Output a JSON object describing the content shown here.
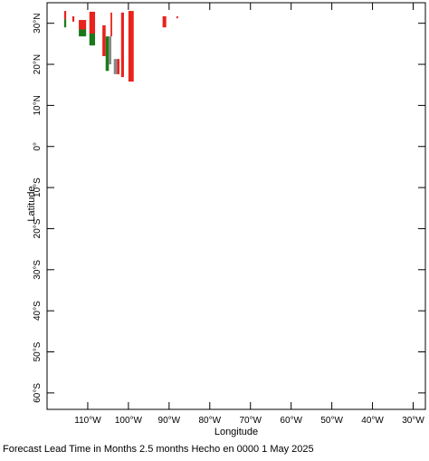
{
  "chart_data": {
    "type": "map",
    "xlabel": "Longitude",
    "ylabel": "Latitude",
    "footer": "Forecast Lead Time in Months 2.5 months Hecho en 0000 1 May 2025",
    "xlim": [
      -120,
      -27
    ],
    "ylim": [
      -64,
      35
    ],
    "xticks": [
      {
        "value": -110,
        "label": "110°W"
      },
      {
        "value": -100,
        "label": "100°W"
      },
      {
        "value": -90,
        "label": "90°W"
      },
      {
        "value": -80,
        "label": "80°W"
      },
      {
        "value": -70,
        "label": "70°W"
      },
      {
        "value": -60,
        "label": "60°W"
      },
      {
        "value": -50,
        "label": "50°W"
      },
      {
        "value": -40,
        "label": "40°W"
      },
      {
        "value": -30,
        "label": "30°W"
      }
    ],
    "yticks": [
      {
        "value": 30,
        "label": "30°N"
      },
      {
        "value": 20,
        "label": "20°N"
      },
      {
        "value": 10,
        "label": "10°N"
      },
      {
        "value": 0,
        "label": "0°"
      },
      {
        "value": -10,
        "label": "10°S"
      },
      {
        "value": -20,
        "label": "20°S"
      },
      {
        "value": -30,
        "label": "30°S"
      },
      {
        "value": -40,
        "label": "40°S"
      },
      {
        "value": -50,
        "label": "50°S"
      },
      {
        "value": -60,
        "label": "60°S"
      }
    ],
    "segments": [
      {
        "lon": [
          -115.8,
          -115.3
        ],
        "lat": [
          29,
          31
        ],
        "color": "#1a7a1a"
      },
      {
        "lon": [
          -115.8,
          -115.3
        ],
        "lat": [
          31,
          33
        ],
        "color": "#e8221c"
      },
      {
        "lon": [
          -113.8,
          -113.3
        ],
        "lat": [
          30.4,
          31.7
        ],
        "color": "#e8221c"
      },
      {
        "lon": [
          -112.2,
          -110.4
        ],
        "lat": [
          28.5,
          30.8
        ],
        "color": "#e8221c"
      },
      {
        "lon": [
          -112.2,
          -110.4
        ],
        "lat": [
          26.8,
          28.5
        ],
        "color": "#1a7a1a"
      },
      {
        "lon": [
          -109.6,
          -108.2
        ],
        "lat": [
          27.5,
          32.8
        ],
        "color": "#e8221c"
      },
      {
        "lon": [
          -109.6,
          -108.2
        ],
        "lat": [
          24.6,
          27.5
        ],
        "color": "#1a7a1a"
      },
      {
        "lon": [
          -106.4,
          -105.6
        ],
        "lat": [
          22,
          29.5
        ],
        "color": "#e8221c"
      },
      {
        "lon": [
          -105.6,
          -104.8
        ],
        "lat": [
          18.4,
          26.8
        ],
        "color": "#1a7a1a"
      },
      {
        "lon": [
          -104.8,
          -104.2
        ],
        "lat": [
          20,
          26.8
        ],
        "color": "#888888"
      },
      {
        "lon": [
          -104.4,
          -104.0
        ],
        "lat": [
          26.8,
          32.6
        ],
        "color": "#e8221c"
      },
      {
        "lon": [
          -103.6,
          -102.8
        ],
        "lat": [
          17.6,
          21.3
        ],
        "color": "#888888"
      },
      {
        "lon": [
          -102.8,
          -102.2
        ],
        "lat": [
          17.6,
          21.3
        ],
        "color": "#e8221c"
      },
      {
        "lon": [
          -101.8,
          -101.1
        ],
        "lat": [
          16.9,
          32.6
        ],
        "color": "#e8221c"
      },
      {
        "lon": [
          -100,
          -98.7
        ],
        "lat": [
          15.8,
          33
        ],
        "color": "#e8221c"
      },
      {
        "lon": [
          -91.6,
          -90.7
        ],
        "lat": [
          29,
          31.7
        ],
        "color": "#e8221c"
      },
      {
        "lon": [
          -88.2,
          -87.8
        ],
        "lat": [
          31.2,
          31.7
        ],
        "color": "#e8221c"
      }
    ]
  }
}
